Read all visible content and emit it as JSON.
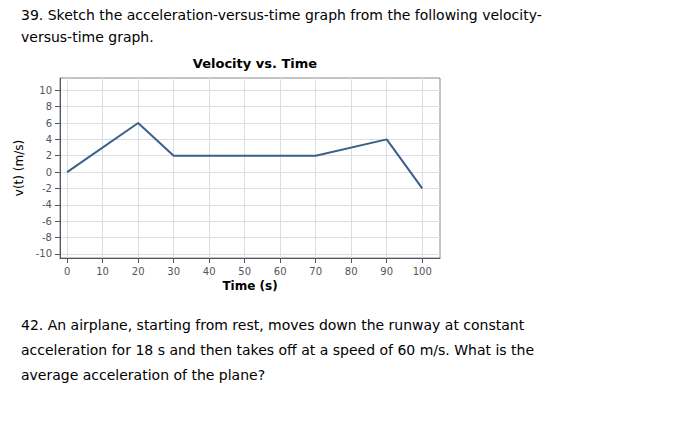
{
  "chart_data": {
    "type": "line",
    "title": "Velocity vs. Time",
    "xlabel": "Time (s)",
    "ylabel": "v(t) (m/s)",
    "x": [
      0,
      20,
      30,
      50,
      70,
      90,
      100
    ],
    "values": [
      0,
      6,
      2,
      2,
      2,
      4,
      -2
    ],
    "color": "#3A5F8A",
    "xlim": [
      -2,
      105
    ],
    "ylim": [
      -10.5,
      11.5
    ],
    "xticks": [
      0,
      10,
      20,
      30,
      40,
      50,
      60,
      70,
      80,
      90,
      100
    ],
    "yticks": [
      -10,
      -8,
      -6,
      -4,
      -2,
      0,
      2,
      4,
      6,
      8,
      10
    ],
    "grid": true,
    "annotations": [
      "39. Sketch the acceleration-versus-time graph from the following velocity-",
      "versus-time graph.",
      "42. An airplane, starting from rest, moves down the runway at constant",
      "acceleration for 18 s and then takes off at a speed of 60 m/s. What is the",
      "average acceleration of the plane?"
    ]
  }
}
